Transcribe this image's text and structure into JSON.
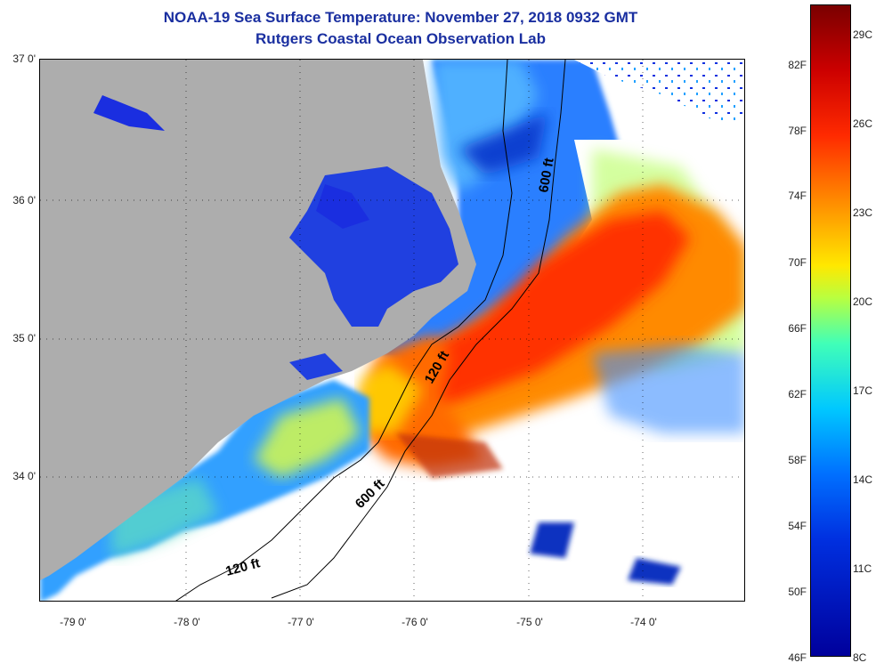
{
  "title": "NOAA-19 Sea Surface Temperature:  November 27, 2018 0932 GMT",
  "subtitle": "Rutgers Coastal Ocean Observation Lab",
  "lat_labels": [
    "37 0'",
    "36 0'",
    "35 0'",
    "34 0'"
  ],
  "lon_labels": [
    "-79 0'",
    "-78 0'",
    "-77 0'",
    "-76 0'",
    "-75 0'",
    "-74 0'"
  ],
  "contours": [
    "600 ft",
    "120 ft",
    "120 ft",
    "600 ft"
  ],
  "colorbar": {
    "fahrenheit": [
      "82F",
      "78F",
      "74F",
      "70F",
      "66F",
      "62F",
      "58F",
      "54F",
      "50F",
      "46F"
    ],
    "celsius": [
      "29C",
      "26C",
      "23C",
      "20C",
      "17C",
      "14C",
      "11C",
      "8C"
    ]
  },
  "colors": {
    "title": "#1a2fa0",
    "land": "#adadad"
  }
}
